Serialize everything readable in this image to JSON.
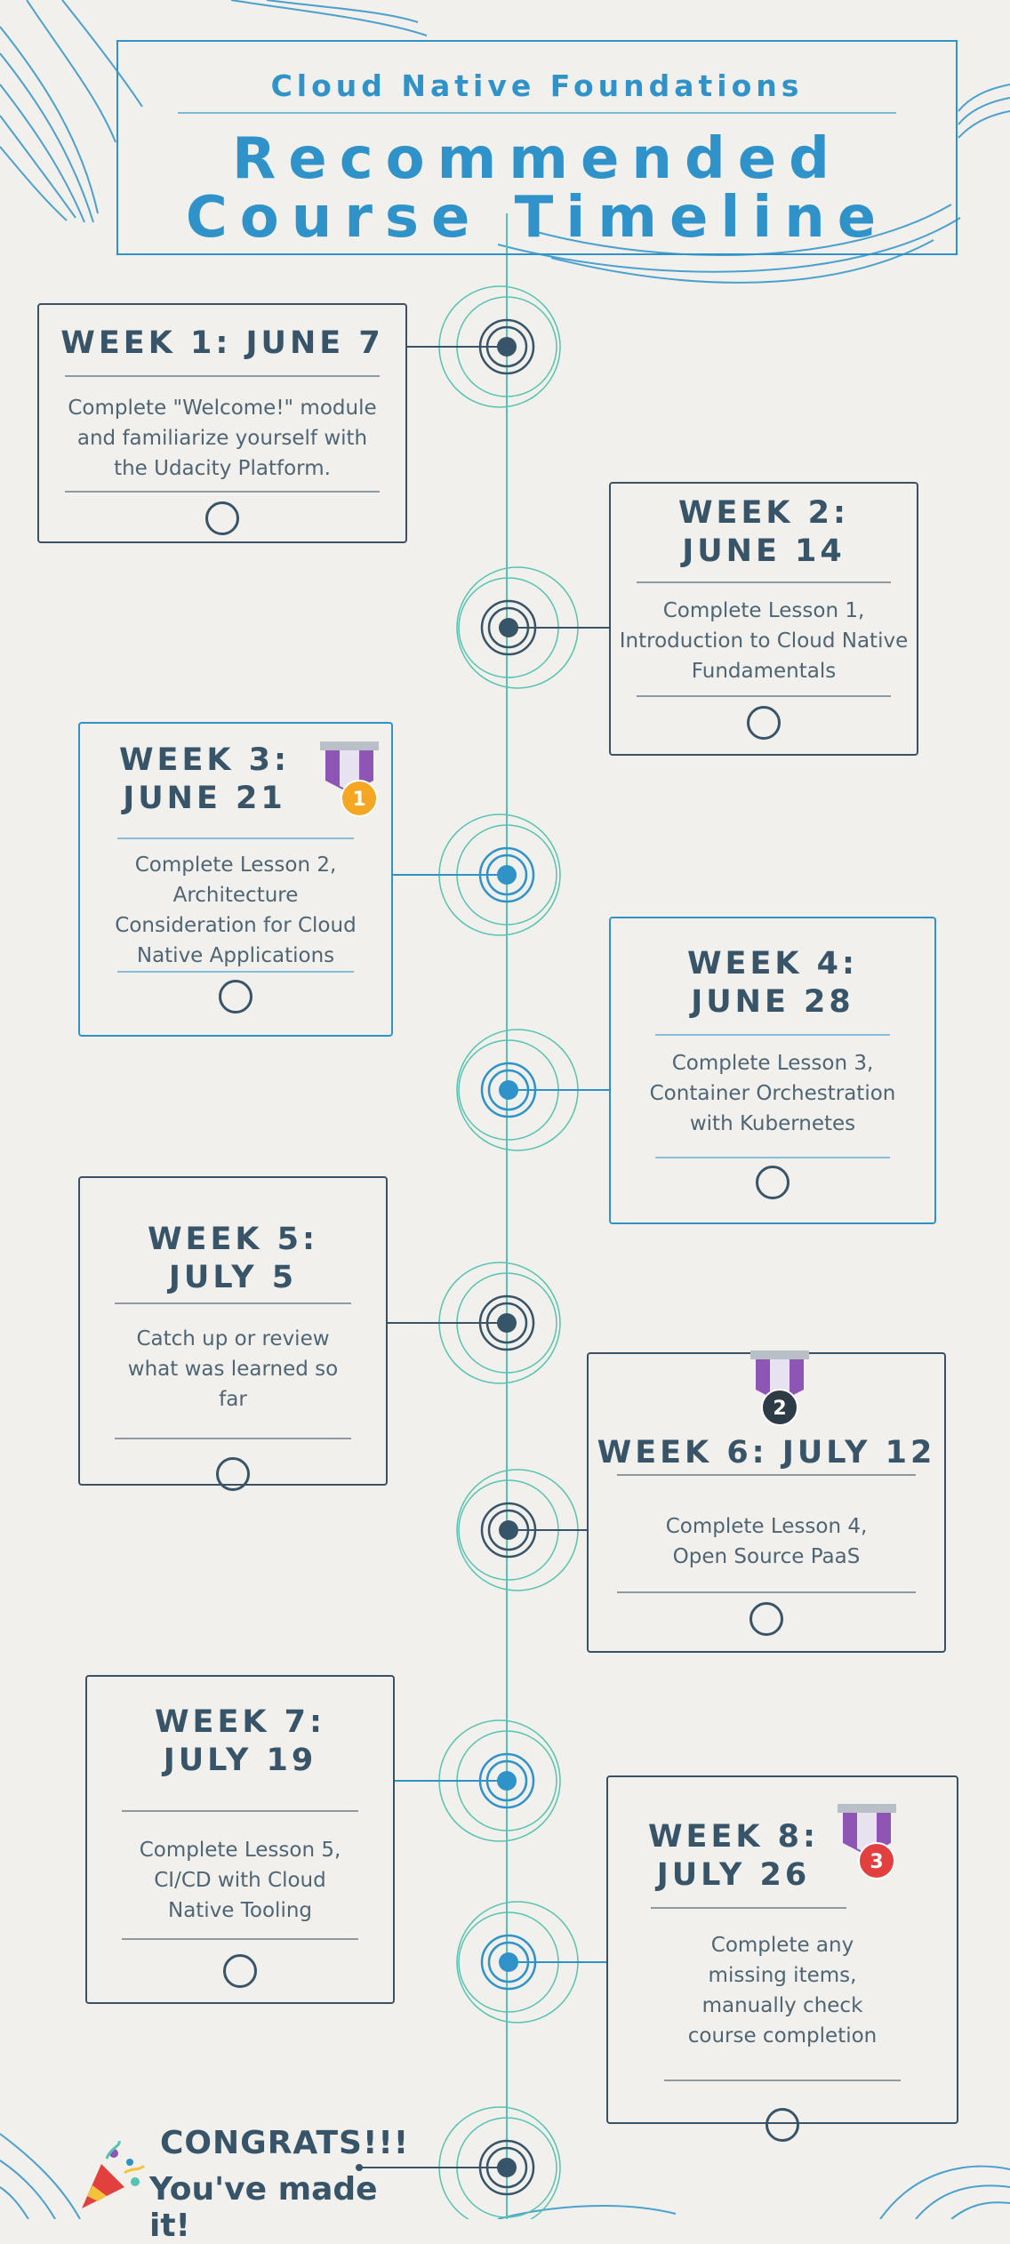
{
  "header": {
    "subtitle": "Cloud Native Foundations",
    "title_line1": "Recommended",
    "title_line2": "Course Timeline"
  },
  "weeks": [
    {
      "title": "WEEK 1: JUNE 7",
      "description": "Complete \"Welcome!\" module and familiarize yourself with the Udacity Platform."
    },
    {
      "title": "WEEK 2: JUNE 14",
      "description": "Complete Lesson 1, Introduction to Cloud Native Fundamentals"
    },
    {
      "title": "WEEK 3: JUNE 21",
      "description": "Complete Lesson 2, Architecture Consideration for Cloud Native Applications",
      "medal": "1"
    },
    {
      "title": "WEEK 4: JUNE 28",
      "description": "Complete Lesson 3, Container Orchestration with Kubernetes"
    },
    {
      "title": "WEEK 5: JULY 5",
      "description": "Catch up or review what was learned so far"
    },
    {
      "title": "WEEK 6: JULY 12",
      "description": "Complete Lesson 4, Open Source PaaS",
      "medal": "2"
    },
    {
      "title": "WEEK 7: JULY 19",
      "description": "Complete Lesson 5, CI/CD with Cloud Native Tooling"
    },
    {
      "title": "WEEK 8: JULY 26",
      "description": "Complete any missing items, manually check course completion",
      "medal": "3"
    }
  ],
  "congrats": {
    "line1": "CONGRATS!!!",
    "line2": "You've made it!",
    "icon": "party-popper-icon"
  },
  "colors": {
    "background": "#f1f0ec",
    "accent_blue": "#2f93c9",
    "dark_slate": "#385468",
    "teal_ring": "#55c3b0",
    "medal_purple": "#8e55b5"
  }
}
